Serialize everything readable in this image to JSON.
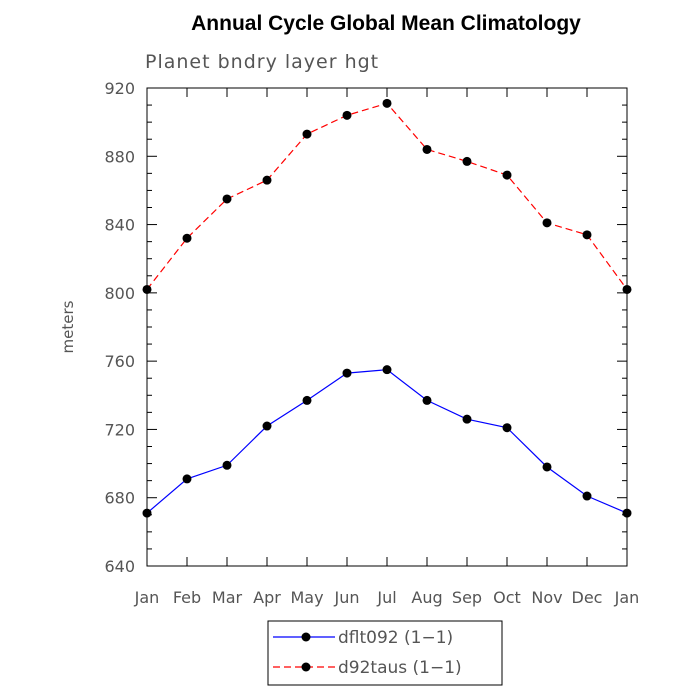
{
  "chart_data": {
    "type": "line",
    "title": "Annual Cycle Global Mean Climatology",
    "subtitle": "Planet bndry layer hgt",
    "xlabel": "",
    "ylabel": "meters",
    "ylim": [
      640,
      920
    ],
    "yticks": [
      "640",
      "680",
      "720",
      "760",
      "800",
      "840",
      "880",
      "920"
    ],
    "categories": [
      "Jan",
      "Feb",
      "Mar",
      "Apr",
      "May",
      "Jun",
      "Jul",
      "Aug",
      "Sep",
      "Oct",
      "Nov",
      "Dec",
      "Jan"
    ],
    "grid": false,
    "legend_position": "bottom",
    "series": [
      {
        "name": "dflt092 (1−1)",
        "color": "#0000ff",
        "dash": "solid",
        "marker": "circle",
        "values": [
          671,
          691,
          699,
          722,
          737,
          753,
          755,
          737,
          726,
          721,
          698,
          681,
          671
        ]
      },
      {
        "name": "d92taus (1−1)",
        "color": "#ff0000",
        "dash": "dashed",
        "marker": "circle",
        "values": [
          802,
          832,
          855,
          866,
          893,
          904,
          911,
          884,
          877,
          869,
          841,
          834,
          802
        ]
      }
    ]
  }
}
